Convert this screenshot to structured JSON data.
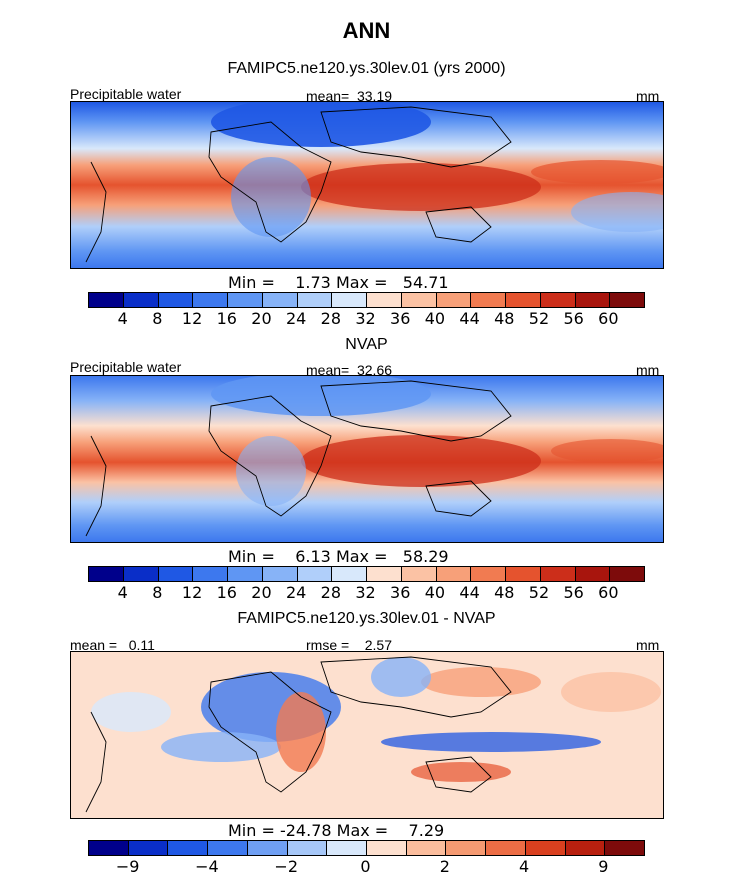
{
  "figure": {
    "title": "ANN"
  },
  "chart_data": [
    {
      "type": "heatmap",
      "title": "FAMIPC5.ne120.ys.30lev.01 (yrs 2000)",
      "left_label": "Precipitable water",
      "center_label": "mean=  33.19",
      "units": "mm",
      "stats_label": "Min =    1.73 Max =   54.71",
      "min": 1.73,
      "max": 54.71,
      "colorbar": {
        "levels": [
          "4",
          "8",
          "12",
          "16",
          "20",
          "24",
          "28",
          "32",
          "36",
          "40",
          "44",
          "48",
          "52",
          "56",
          "60"
        ],
        "colors": [
          "#00008b",
          "#0a2ec8",
          "#1f58e4",
          "#3d78ee",
          "#5f96f3",
          "#87b3f7",
          "#b0cffa",
          "#d8e8fb",
          "#fde0cf",
          "#fbc2a4",
          "#f7a079",
          "#f17b51",
          "#e5532e",
          "#cc2e1a",
          "#a8150d",
          "#7d0b0b"
        ]
      }
    },
    {
      "type": "heatmap",
      "title": "NVAP",
      "left_label": "Precipitable water",
      "center_label": "mean=  32.66",
      "units": "mm",
      "stats_label": "Min =    6.13 Max =   58.29",
      "min": 6.13,
      "max": 58.29,
      "colorbar": {
        "levels": [
          "4",
          "8",
          "12",
          "16",
          "20",
          "24",
          "28",
          "32",
          "36",
          "40",
          "44",
          "48",
          "52",
          "56",
          "60"
        ],
        "colors": [
          "#00008b",
          "#0a2ec8",
          "#1f58e4",
          "#3d78ee",
          "#5f96f3",
          "#87b3f7",
          "#b0cffa",
          "#d8e8fb",
          "#fde0cf",
          "#fbc2a4",
          "#f7a079",
          "#f17b51",
          "#e5532e",
          "#cc2e1a",
          "#a8150d",
          "#7d0b0b"
        ]
      }
    },
    {
      "type": "heatmap",
      "title": "FAMIPC5.ne120.ys.30lev.01 - NVAP",
      "left_label": "mean =   0.11",
      "center_label": "rmse =    2.57",
      "units": "mm",
      "stats_label": "Min = -24.78 Max =    7.29",
      "min": -24.78,
      "max": 7.29,
      "colorbar": {
        "levels": [
          "-9",
          "",
          "-4",
          "",
          "-2",
          "",
          "0",
          "",
          "2",
          "",
          "4",
          "",
          "9"
        ],
        "tick_labels": [
          "−9",
          "−4",
          "−2",
          "0",
          "2",
          "4",
          "9"
        ],
        "colors": [
          "#00008b",
          "#0a2ec8",
          "#1f58e4",
          "#3d78ee",
          "#6f9ff3",
          "#a6c7f8",
          "#d8e8fb",
          "#fde0cf",
          "#fbbd9d",
          "#f59a72",
          "#ec6d45",
          "#d9401f",
          "#b8200f",
          "#7d0b0b"
        ]
      }
    }
  ]
}
